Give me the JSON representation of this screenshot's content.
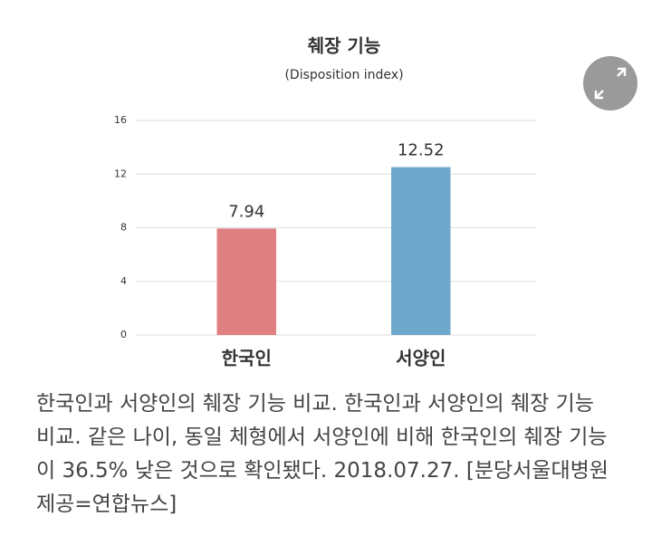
{
  "chart_data": {
    "type": "bar",
    "title": "췌장 기능",
    "subtitle": "(Disposition index)",
    "categories": [
      "한국인",
      "서양인"
    ],
    "values": [
      7.94,
      12.52
    ],
    "colors": [
      "#e07f80",
      "#6fa8cc"
    ],
    "ylim": [
      0,
      16
    ],
    "yticks": [
      0,
      4,
      8,
      12,
      16
    ],
    "grid": true
  },
  "caption": "한국인과 서양인의 췌장 기능 비교. 한국인과 서양인의 췌장 기능 비교. 같은 나이, 동일 체형에서 서양인에 비해 한국인의 췌장 기능이 36.5% 낮은 것으로 확인됐다. 2018.07.27. [분당서울대병원 제공=연합뉴스]"
}
